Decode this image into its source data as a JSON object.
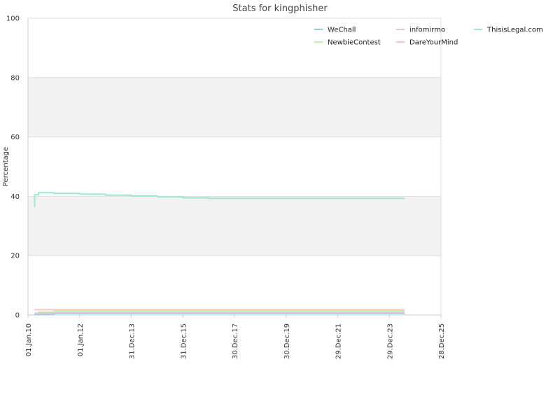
{
  "chart_data": {
    "type": "line",
    "title": "Stats for kingphisher",
    "ylabel": "Percentage",
    "xlabel": "",
    "ylim": [
      0,
      100
    ],
    "xlim": [
      "2010-01-01",
      "2025-12-28"
    ],
    "y_ticks": [
      "0",
      "20",
      "40",
      "60",
      "80",
      "100"
    ],
    "x_ticks": [
      {
        "date": "2010-01-01",
        "label": "01.Jan.10"
      },
      {
        "date": "2012-01-01",
        "label": "01.Jan.12"
      },
      {
        "date": "2013-12-31",
        "label": "31.Dec.13"
      },
      {
        "date": "2015-12-31",
        "label": "31.Dec.15"
      },
      {
        "date": "2017-12-30",
        "label": "30.Dec.17"
      },
      {
        "date": "2019-12-30",
        "label": "30.Dec.19"
      },
      {
        "date": "2021-12-29",
        "label": "29.Dec.21"
      },
      {
        "date": "2023-12-29",
        "label": "29.Dec.23"
      },
      {
        "date": "2025-12-28",
        "label": "28.Dec.25"
      }
    ],
    "grid": "horizontal",
    "banded_background": true,
    "legend_placement": "top-right",
    "series": [
      {
        "name": "WeChall",
        "color": "#8fd0e6",
        "points": [
          [
            "2010-04-01",
            0.3
          ],
          [
            "2011-01-01",
            0.5
          ],
          [
            "2024-08-01",
            0.5
          ]
        ]
      },
      {
        "name": "NewbieContest",
        "color": "#c3f0a8",
        "points": [
          [
            "2010-04-01",
            0.5
          ],
          [
            "2010-06-01",
            1.0
          ],
          [
            "2011-01-01",
            1.3
          ],
          [
            "2024-08-01",
            1.3
          ]
        ]
      },
      {
        "name": "infomirmo",
        "color": "#e6c3e6",
        "points": [
          [
            "2010-04-01",
            0.6
          ],
          [
            "2011-01-01",
            0.8
          ],
          [
            "2024-08-01",
            0.8
          ]
        ]
      },
      {
        "name": "DareYourMind",
        "color": "#f5c6c6",
        "points": [
          [
            "2010-04-01",
            1.8
          ],
          [
            "2024-08-01",
            1.8
          ]
        ]
      },
      {
        "name": "ThisisLegal.com",
        "color": "#9ee8d2",
        "points": [
          [
            "2010-04-01",
            36.5
          ],
          [
            "2010-04-05",
            40.5
          ],
          [
            "2010-06-01",
            41.2
          ],
          [
            "2011-01-01",
            41.0
          ],
          [
            "2012-01-01",
            40.7
          ],
          [
            "2013-01-01",
            40.4
          ],
          [
            "2014-01-01",
            40.1
          ],
          [
            "2015-01-01",
            39.8
          ],
          [
            "2016-01-01",
            39.5
          ],
          [
            "2017-01-01",
            39.3
          ],
          [
            "2020-01-01",
            39.3
          ],
          [
            "2024-08-01",
            39.3
          ]
        ]
      }
    ]
  }
}
